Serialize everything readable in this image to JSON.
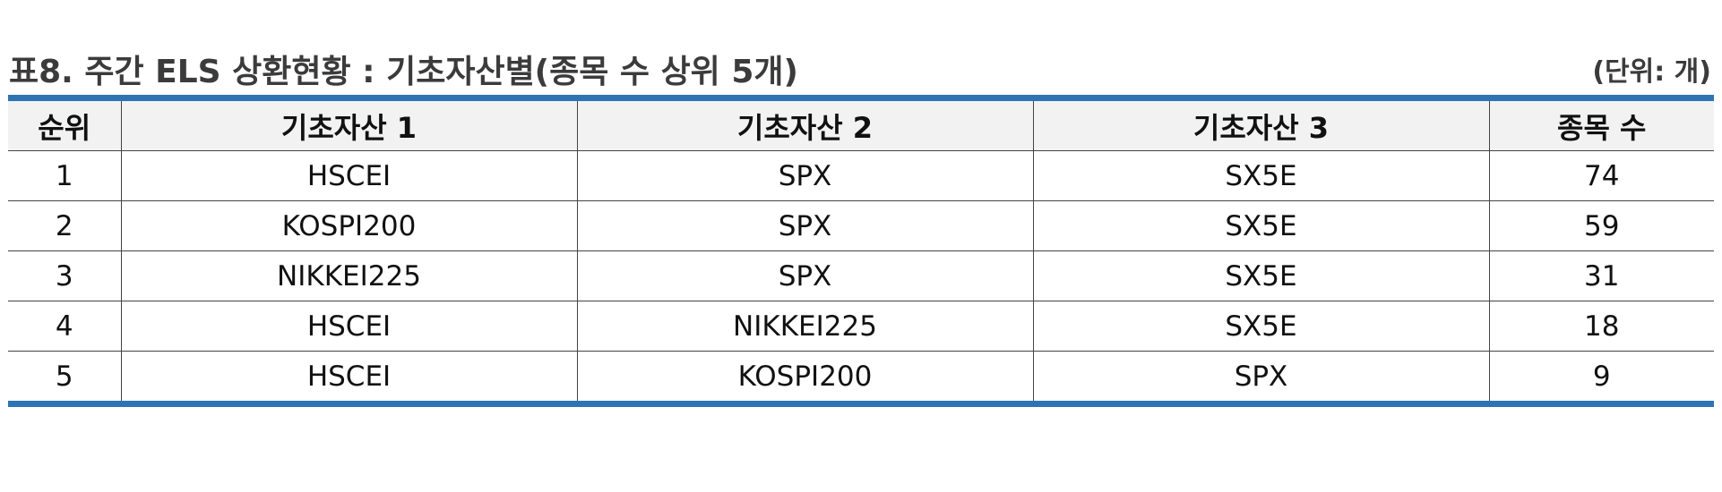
{
  "header": {
    "title": "표8. 주간 ELS 상환현황 : 기초자산별(종목 수 상위 5개)",
    "unit": "(단위: 개)"
  },
  "table": {
    "columns": [
      "순위",
      "기초자산 1",
      "기초자산 2",
      "기초자산 3",
      "종목 수"
    ],
    "rows": [
      [
        "1",
        "HSCEI",
        "SPX",
        "SX5E",
        "74"
      ],
      [
        "2",
        "KOSPI200",
        "SPX",
        "SX5E",
        "59"
      ],
      [
        "3",
        "NIKKEI225",
        "SPX",
        "SX5E",
        "31"
      ],
      [
        "4",
        "HSCEI",
        "NIKKEI225",
        "SX5E",
        "18"
      ],
      [
        "5",
        "HSCEI",
        "KOSPI200",
        "SPX",
        "9"
      ]
    ]
  },
  "colors": {
    "accent_rule": "#2e74b5",
    "header_bg": "#f2f2f2"
  }
}
